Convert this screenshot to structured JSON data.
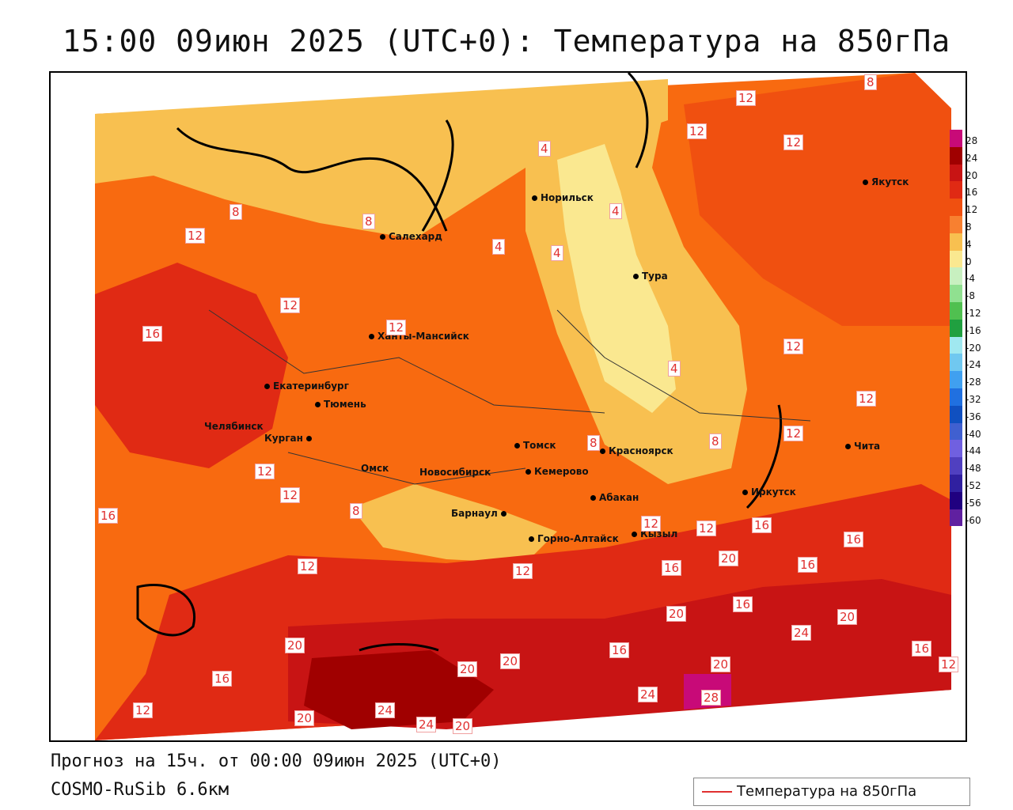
{
  "title": "15:00 09июн 2025 (UTC+0): Температура на 850гПа",
  "footer": {
    "forecast": "Прогноз на 15ч. от 00:00 09июн 2025 (UTC+0)",
    "model": "COSMO-RuSib 6.6км"
  },
  "legend": {
    "label": "Температура на 850гПа",
    "color": "#e03030"
  },
  "colorbar": {
    "ticks": [
      "28",
      "24",
      "20",
      "16",
      "12",
      "8",
      "4",
      "0",
      "-4",
      "-8",
      "-12",
      "-16",
      "-20",
      "-24",
      "-28",
      "-32",
      "-36",
      "-40",
      "-44",
      "-48",
      "-52",
      "-56",
      "-60"
    ],
    "colors": [
      "#c80a78",
      "#a00000",
      "#c81414",
      "#e02a14",
      "#f05010",
      "#f88030",
      "#f8c050",
      "#fae890",
      "#c8f0c0",
      "#90e090",
      "#50c050",
      "#20a040",
      "#a0e8f0",
      "#70c8f0",
      "#40a0f0",
      "#2070e0",
      "#1050c0",
      "#4060d0",
      "#7060e0",
      "#5040c0",
      "#3020a0",
      "#200080",
      "#6020a0"
    ]
  },
  "cities": [
    {
      "name": "Норильск"
    },
    {
      "name": "Якутск"
    },
    {
      "name": "Салехард"
    },
    {
      "name": "Тура"
    },
    {
      "name": "Ханты-Мансийск"
    },
    {
      "name": "Екатеринбург"
    },
    {
      "name": "Тюмень"
    },
    {
      "name": "Челябинск"
    },
    {
      "name": "Курган"
    },
    {
      "name": "Омск"
    },
    {
      "name": "Новосибирск"
    },
    {
      "name": "Томск"
    },
    {
      "name": "Кемерово"
    },
    {
      "name": "Красноярск"
    },
    {
      "name": "Абакан"
    },
    {
      "name": "Барнаул"
    },
    {
      "name": "Горно-Алтайск"
    },
    {
      "name": "Кызыл"
    },
    {
      "name": "Иркутск"
    },
    {
      "name": "Чита"
    }
  ],
  "contour_labels": [
    "8",
    "12",
    "12",
    "4",
    "12",
    "4",
    "8",
    "8",
    "4",
    "4",
    "12",
    "12",
    "16",
    "12",
    "4",
    "12",
    "12",
    "8",
    "12",
    "8",
    "12",
    "16",
    "8",
    "12",
    "12",
    "12",
    "16",
    "16",
    "12",
    "20",
    "16",
    "16",
    "12",
    "20",
    "16",
    "20",
    "24",
    "20",
    "20",
    "20",
    "16",
    "16",
    "12",
    "24",
    "24",
    "20",
    "20",
    "28",
    "24",
    "20",
    "16",
    "12"
  ]
}
